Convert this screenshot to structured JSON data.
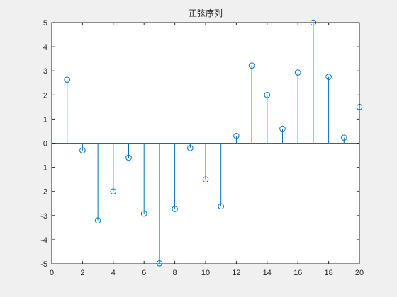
{
  "chart_data": {
    "type": "stem",
    "title": "正弦序列",
    "xlabel": "",
    "ylabel": "",
    "xlim": [
      0,
      20
    ],
    "ylim": [
      -5,
      5
    ],
    "x_ticks": [
      "0",
      "2",
      "4",
      "6",
      "8",
      "10",
      "12",
      "14",
      "16",
      "18",
      "20"
    ],
    "y_ticks": [
      "5",
      "4",
      "3",
      "2",
      "1",
      "0",
      "-1",
      "-2",
      "-3",
      "-4",
      "-5"
    ],
    "x": [
      1,
      2,
      3,
      4,
      5,
      6,
      7,
      8,
      9,
      10,
      11,
      12,
      13,
      14,
      15,
      16,
      17,
      18,
      19,
      20
    ],
    "values": [
      2.63,
      -0.3,
      -3.2,
      -2.0,
      -0.6,
      -2.92,
      -4.98,
      -2.73,
      -0.2,
      -1.5,
      -2.62,
      0.3,
      3.22,
      2.0,
      0.6,
      2.93,
      5.0,
      2.75,
      0.23,
      1.5
    ],
    "grid": false,
    "series_color": "#0072BD",
    "axes_color": "#262626",
    "axes_background": "#ffffff",
    "figure_background": "#f0f0f0"
  }
}
